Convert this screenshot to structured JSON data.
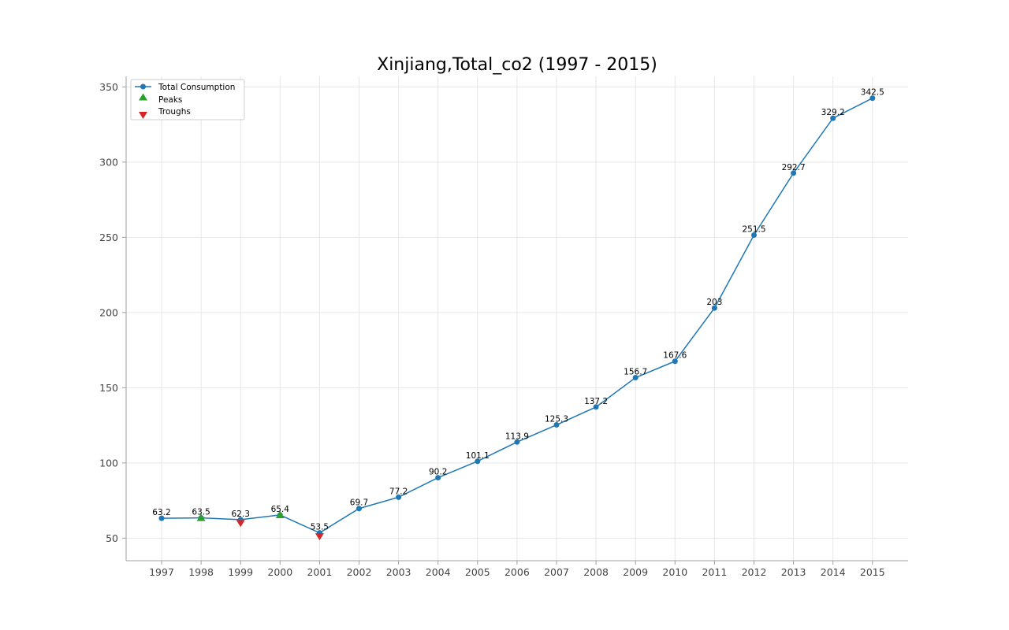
{
  "chart_data": {
    "type": "line",
    "title": "Xinjiang,Total_co2 (1997 - 2015)",
    "xlabel": "",
    "ylabel": "",
    "x": [
      1997,
      1998,
      1999,
      2000,
      2001,
      2002,
      2003,
      2004,
      2005,
      2006,
      2007,
      2008,
      2009,
      2010,
      2011,
      2012,
      2013,
      2014,
      2015
    ],
    "x_tick_labels": [
      "1997",
      "1998",
      "1999",
      "2000",
      "2001",
      "2002",
      "2003",
      "2004",
      "2005",
      "2006",
      "2007",
      "2008",
      "2009",
      "2010",
      "2011",
      "2012",
      "2013",
      "2014",
      "2015"
    ],
    "y_ticks": [
      50,
      100,
      150,
      200,
      250,
      300,
      350
    ],
    "ylim": [
      35,
      357
    ],
    "grid": true,
    "legend_position": "top-left",
    "series": [
      {
        "name": "Total Consumption",
        "color": "#1f77b4",
        "values": [
          63.2,
          63.5,
          62.3,
          65.4,
          53.5,
          69.7,
          77.2,
          90.2,
          101.1,
          113.9,
          125.3,
          137.2,
          156.7,
          167.6,
          203,
          251.5,
          292.7,
          329.2,
          342.5
        ],
        "labels": [
          "63.2",
          "63.5",
          "62.3",
          "65.4",
          "53.5",
          "69.7",
          "77.2",
          "90.2",
          "101.1",
          "113.9",
          "125.3",
          "137.2",
          "156.7",
          "167.6",
          "203",
          "251.5",
          "292.7",
          "329.2",
          "342.5"
        ]
      }
    ],
    "peaks": {
      "name": "Peaks",
      "color": "#2ca02c",
      "x": [
        1998,
        2000
      ],
      "values": [
        63.5,
        65.4
      ]
    },
    "troughs": {
      "name": "Troughs",
      "color": "#d62728",
      "x": [
        1999,
        2001
      ],
      "values": [
        62.3,
        53.5
      ]
    }
  }
}
